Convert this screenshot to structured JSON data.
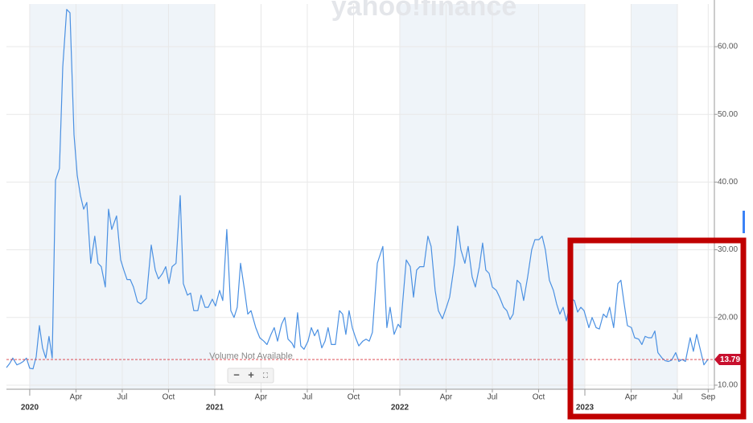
{
  "chart_data": {
    "type": "line",
    "watermark": "yahoo!finance",
    "note": "Volume Not Available",
    "color": "#4a90e2",
    "x": [
      -1.51,
      -1.3,
      -1.1,
      -0.83,
      -0.63,
      -0.42,
      -0.21,
      0,
      0.21,
      0.42,
      0.63,
      0.83,
      1.04,
      1.25,
      1.46,
      1.67,
      1.93,
      2.14,
      2.4,
      2.61,
      2.87,
      3.08,
      3.29,
      3.5,
      3.7,
      3.96,
      4.22,
      4.43,
      4.64,
      4.9,
      5.11,
      5.32,
      5.63,
      5.9,
      6.1,
      6.31,
      6.52,
      6.73,
      6.99,
      7.2,
      7.56,
      7.88,
      8.14,
      8.35,
      8.61,
      8.82,
      9.03,
      9.23,
      9.49,
      9.76,
      9.96,
      10.23,
      10.43,
      10.64,
      10.9,
      11.11,
      11.37,
      11.58,
      11.84,
      12.05,
      12.31,
      12.52,
      12.78,
      13.04,
      13.25,
      13.46,
      13.67,
      13.93,
      14.14,
      14.35,
      14.66,
      14.92,
      15.18,
      15.39,
      15.65,
      15.86,
      16.07,
      16.33,
      16.54,
      16.75,
      17.01,
      17.16,
      17.37,
      17.58,
      17.79,
      18.05,
      18.26,
      18.47,
      18.68,
      18.94,
      19.15,
      19.35,
      19.56,
      19.82,
      20.09,
      20.29,
      20.5,
      20.71,
      20.92,
      21.13,
      21.34,
      21.6,
      21.81,
      22.02,
      22.22,
      22.54,
      22.9,
      23.16,
      23.37,
      23.63,
      23.89,
      24.05,
      24.42,
      24.68,
      24.89,
      25.09,
      25.3,
      25.56,
      25.82,
      26.03,
      26.29,
      26.5,
      26.76,
      27.02,
      27.23,
      27.55,
      27.75,
      27.96,
      28.22,
      28.43,
      28.69,
      28.9,
      29.16,
      29.37,
      29.58,
      29.79,
      30.0,
      30.26,
      30.47,
      30.73,
      30.94,
      31.15,
      31.35,
      31.61,
      31.82,
      32.03,
      32.29,
      32.55,
      32.76,
      33.02,
      33.23,
      33.44,
      33.7,
      33.96,
      34.17,
      34.38,
      34.59,
      34.8,
      35.11,
      35.32,
      35.53,
      35.74,
      35.95,
      36.26,
      36.47,
      36.73,
      36.94,
      37.2,
      37.41,
      37.61,
      37.87,
      38.14,
      38.34,
      38.55,
      38.76,
      39.02,
      39.23,
      39.49,
      39.7,
      39.91,
      40.12,
      40.33,
      40.54,
      40.74,
      41.01,
      41.21,
      41.42,
      41.63,
      41.89,
      42.1,
      42.31,
      42.52,
      42.83,
      43.04,
      43.25,
      43.46,
      43.72,
      43.98
    ],
    "values": [
      12.6,
      13.2,
      14.0,
      13.0,
      13.2,
      13.5,
      14.0,
      12.5,
      12.4,
      14.2,
      18.8,
      15.5,
      14.0,
      17.2,
      14.0,
      40.3,
      42,
      57,
      65.5,
      65,
      47,
      41,
      38,
      36,
      37,
      28,
      32,
      28,
      27.5,
      24.5,
      36,
      33,
      35,
      28.5,
      27,
      25.6,
      25.6,
      24.5,
      22.3,
      22,
      22.8,
      30.7,
      27,
      25.7,
      26.5,
      27.5,
      25,
      27.5,
      28,
      38,
      25,
      23.3,
      23.6,
      21,
      21,
      23.3,
      21.5,
      21.5,
      22.7,
      21.7,
      24,
      22.5,
      33,
      21,
      20,
      21.5,
      28,
      24,
      20.5,
      21,
      18.5,
      17,
      16.5,
      16,
      17.5,
      18.5,
      16.5,
      19,
      20,
      16.8,
      16.2,
      15.5,
      20.7,
      15.8,
      15.3,
      16.5,
      18.5,
      17.3,
      18.2,
      15.5,
      16.5,
      18.5,
      16,
      16,
      21,
      20.5,
      17.5,
      21,
      18.5,
      17,
      15.8,
      16.5,
      16.8,
      16.5,
      17.8,
      28,
      30.5,
      18.5,
      21.5,
      17.5,
      19,
      18.5,
      28.5,
      27.5,
      23,
      27,
      27.5,
      27.5,
      32,
      30.5,
      24,
      21,
      19.8,
      21.5,
      23,
      28,
      33.5,
      30,
      28,
      30.5,
      26,
      24.5,
      27.5,
      31,
      27,
      26.5,
      24.5,
      24,
      23,
      21.5,
      21,
      19.7,
      20.5,
      25.5,
      25,
      22.5,
      26,
      30,
      31.5,
      31.5,
      32,
      30,
      25.5,
      24,
      22,
      20.5,
      21.5,
      19.5,
      22.8,
      22.5,
      20.8,
      21.5,
      21,
      18.5,
      20,
      18.5,
      18.3,
      20.5,
      20,
      21.5,
      18.5,
      25,
      25.5,
      22,
      18.8,
      18.5,
      17,
      16.8,
      16,
      17.2,
      17,
      17,
      18,
      14.8,
      14,
      13.6,
      13.5,
      13.7,
      14.8,
      13.5,
      13.8,
      13.5,
      17,
      15,
      17.5,
      15.5,
      13,
      13.79
    ],
    "last_value": 13.79,
    "xlim": [
      -1.51,
      44.4
    ],
    "ylim": [
      9.4,
      66.3
    ],
    "xticks": [
      {
        "value": 0,
        "label": "2020"
      },
      {
        "value": 3,
        "label": "Apr"
      },
      {
        "value": 6,
        "label": "Jul"
      },
      {
        "value": 9,
        "label": "Oct"
      },
      {
        "value": 12,
        "label": "2021"
      },
      {
        "value": 15,
        "label": "Apr"
      },
      {
        "value": 18,
        "label": "Jul"
      },
      {
        "value": 21,
        "label": "Oct"
      },
      {
        "value": 24,
        "label": "2022"
      },
      {
        "value": 27,
        "label": "Apr"
      },
      {
        "value": 30,
        "label": "Jul"
      },
      {
        "value": 33,
        "label": "Oct"
      },
      {
        "value": 36,
        "label": "2023"
      },
      {
        "value": 39,
        "label": "Apr"
      },
      {
        "value": 42,
        "label": "Jul"
      },
      {
        "value": 44,
        "label": "Sep"
      }
    ],
    "yticks": [
      {
        "value": 10,
        "label": "10.00"
      },
      {
        "value": 20,
        "label": "20.00"
      },
      {
        "value": 30,
        "label": "30.00"
      },
      {
        "value": 40,
        "label": "40.00"
      },
      {
        "value": 50,
        "label": "50.00"
      },
      {
        "value": 60,
        "label": "60.00"
      }
    ],
    "grid": true
  }
}
